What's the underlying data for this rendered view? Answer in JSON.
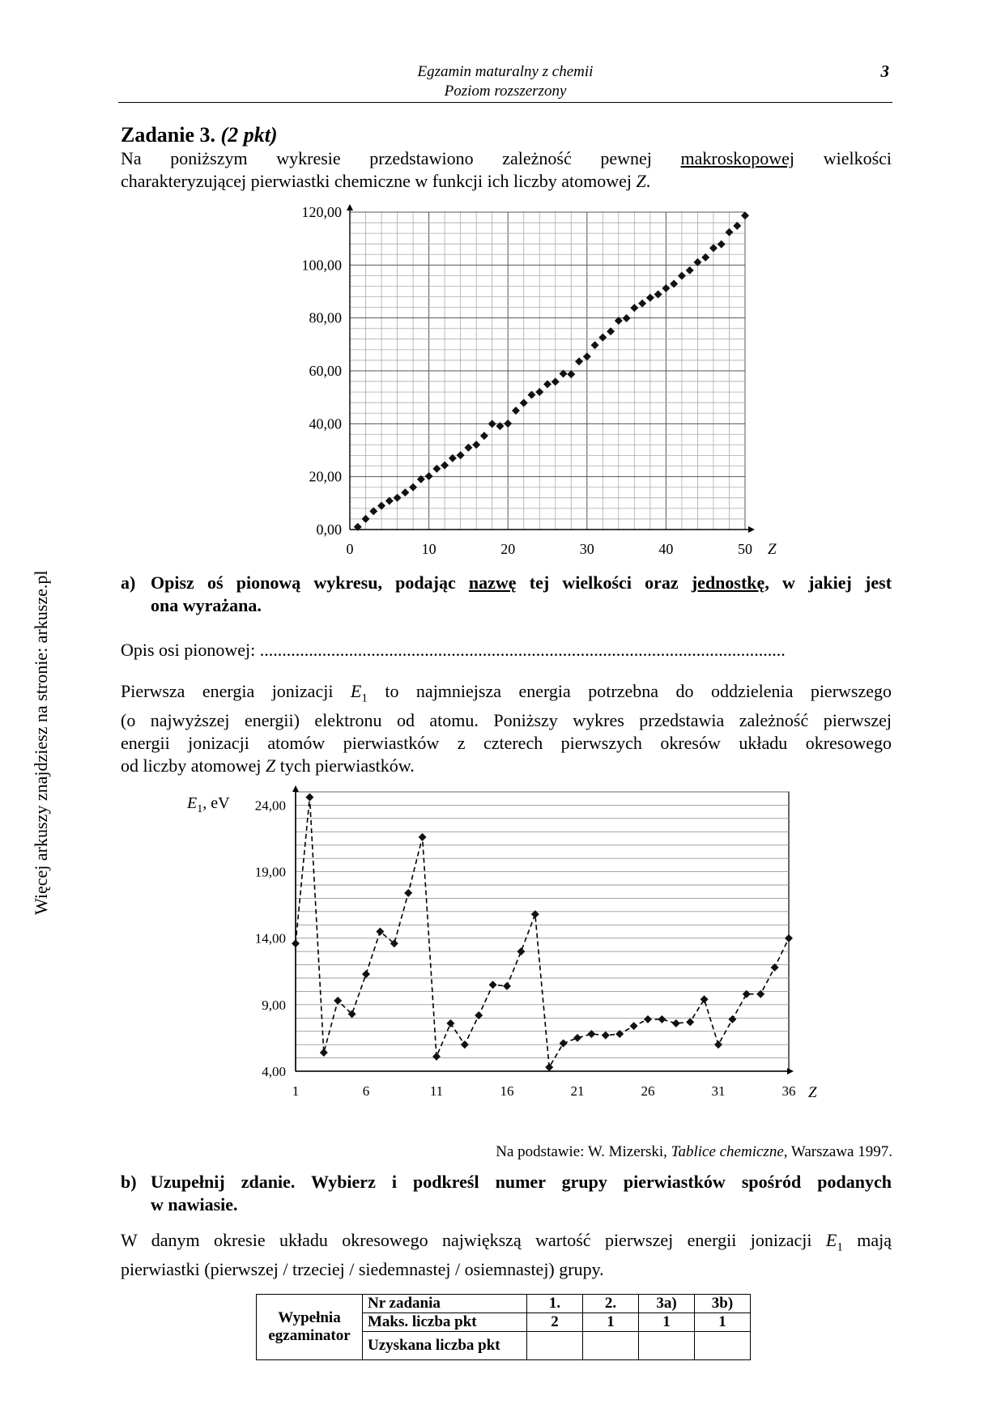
{
  "header": {
    "line1": "Egzamin maturalny z chemii",
    "line2": "Poziom rozszerzony",
    "page_number": "3"
  },
  "sidebar_text": "Więcej arkuszy znajdziesz na stronie: arkusze.pl",
  "task": {
    "title_bold": "Zadanie 3.",
    "title_points": "(2 pkt)",
    "intro_line1_a": "Na poniższym wykresie przedstawiono zależność pewnej",
    "intro_line1_u": "makroskopowej",
    "intro_line1_b": "wielkości",
    "intro_line2": "charakteryzującej pierwiastki chemiczne w funkcji ich liczby atomowej Z.",
    "part_a": {
      "label": "a)",
      "text_1": "Opisz oś pionową wykresu, podając",
      "text_u1": "nazwę",
      "text_2": "tej wielkości oraz",
      "text_u2": "jednostkę",
      "text_3": ", w jakiej jest",
      "text_line2": "ona wyrażana."
    },
    "answer_label": "Opis osi pionowej:",
    "answer_dots": "......................................................................................................................",
    "info_lines": [
      "Pierwsza energia jonizacji E1 to najmniejsza energia potrzebna do oddzielenia pierwszego",
      "(o najwyższej energii) elektronu od atomu. Poniższy wykres przedstawia zależność pierwszej",
      "energii jonizacji atomów pierwiastków z czterech pierwszych okresów układu okresowego",
      "od liczby atomowej Z tych pierwiastków."
    ],
    "source_prefix": "Na podstawie: W. Mizerski,",
    "source_title": "Tablice chemiczne",
    "source_suffix": ", Warszawa 1997.",
    "part_b": {
      "label": "b)",
      "line1": "Uzupełnij zdanie. Wybierz i podkreśl numer grupy pierwiastków spośród podanych",
      "line2": "w nawiasie."
    },
    "sentence_lines": [
      "W danym okresie układu okresowego największą wartość pierwszej energii jonizacji E1 mają",
      "pierwiastki (pierwszej  /  trzeciej  /  siedemnastej  /  osiemnastej) grupy."
    ]
  },
  "score_table": {
    "left_label_1": "Wypełnia",
    "left_label_2": "egzaminator",
    "row1_label": "Nr zadania",
    "row2_label": "Maks. liczba pkt",
    "row3_label": "Uzyskana liczba pkt",
    "tasks": [
      "1.",
      "2.",
      "3a)",
      "3b)"
    ],
    "max_points": [
      "2",
      "1",
      "1",
      "1"
    ]
  },
  "chart_data": [
    {
      "type": "scatter",
      "xlabel": "Z",
      "ylabel": "",
      "xlim": [
        0,
        50
      ],
      "ylim": [
        0,
        120
      ],
      "x_ticks": [
        "0",
        "10",
        "20",
        "30",
        "40",
        "50"
      ],
      "y_ticks": [
        "0,00",
        "20,00",
        "40,00",
        "60,00",
        "80,00",
        "100,00",
        "120,00"
      ],
      "grid": true,
      "x": [
        1,
        2,
        3,
        4,
        5,
        6,
        7,
        8,
        9,
        10,
        11,
        12,
        13,
        14,
        15,
        16,
        17,
        18,
        19,
        20,
        21,
        22,
        23,
        24,
        25,
        26,
        27,
        28,
        29,
        30,
        31,
        32,
        33,
        34,
        35,
        36,
        37,
        38,
        39,
        40,
        41,
        42,
        43,
        44,
        45,
        46,
        47,
        48,
        49,
        50
      ],
      "y": [
        1.01,
        4.0,
        6.94,
        9.01,
        10.81,
        12.01,
        14.01,
        16.0,
        19.0,
        20.18,
        22.99,
        24.31,
        26.98,
        28.09,
        30.97,
        32.07,
        35.45,
        39.95,
        39.1,
        40.08,
        44.96,
        47.87,
        50.94,
        52.0,
        54.94,
        55.85,
        58.93,
        58.69,
        63.55,
        65.39,
        69.72,
        72.61,
        74.92,
        78.96,
        79.9,
        83.8,
        85.47,
        87.62,
        88.91,
        91.22,
        92.91,
        95.94,
        98.0,
        101.07,
        102.91,
        106.42,
        107.87,
        112.41,
        114.82,
        118.71
      ]
    },
    {
      "type": "line",
      "xlabel": "Z",
      "ylabel_main": "E",
      "ylabel_sub": "1",
      "ylabel_unit": ", eV",
      "xlim": [
        1,
        36
      ],
      "ylim": [
        4,
        25
      ],
      "x_ticks": [
        "1",
        "6",
        "11",
        "16",
        "21",
        "26",
        "31",
        "36"
      ],
      "y_ticks": [
        "4,00",
        "9,00",
        "14,00",
        "19,00",
        "24,00"
      ],
      "grid": true,
      "line_style": "dashed",
      "x": [
        1,
        2,
        3,
        4,
        5,
        6,
        7,
        8,
        9,
        10,
        11,
        12,
        13,
        14,
        15,
        16,
        17,
        18,
        19,
        20,
        21,
        22,
        23,
        24,
        25,
        26,
        27,
        28,
        29,
        30,
        31,
        32,
        33,
        34,
        35,
        36
      ],
      "y": [
        13.6,
        24.6,
        5.4,
        9.3,
        8.3,
        11.3,
        14.5,
        13.6,
        17.4,
        21.6,
        5.1,
        7.6,
        6.0,
        8.2,
        10.5,
        10.4,
        13.0,
        15.8,
        4.3,
        6.1,
        6.5,
        6.8,
        6.7,
        6.8,
        7.4,
        7.9,
        7.9,
        7.6,
        7.7,
        9.4,
        6.0,
        7.9,
        9.8,
        9.8,
        11.8,
        14.0
      ]
    }
  ]
}
